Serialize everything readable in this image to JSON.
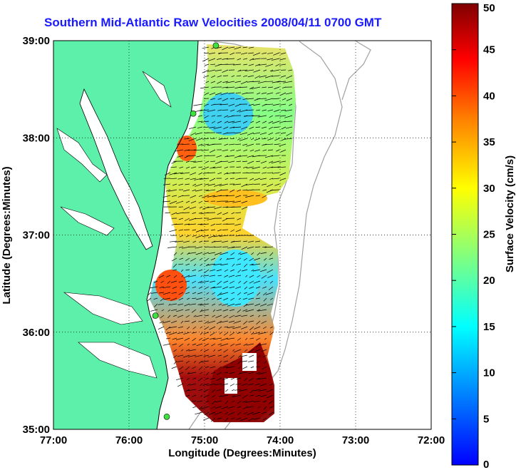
{
  "title": "Southern Mid-Atlantic Raw Velocities 2008/04/11 0700 GMT",
  "axes": {
    "xlabel": "Longitude (Degrees:Minutes)",
    "ylabel": "Latitude (Degrees:Minutes)",
    "x_ticks": [
      "77:00",
      "76:00",
      "75:00",
      "74:00",
      "73:00",
      "72:00"
    ],
    "y_ticks": [
      "39:00",
      "38:00",
      "37:00",
      "36:00",
      "35:00"
    ],
    "x_range_deg_west": [
      77,
      72
    ],
    "y_range_deg_north": [
      35,
      39
    ],
    "grid": "dotted"
  },
  "colorbar": {
    "label": "Surface Velocity (cm/s)",
    "ticks": [
      "50",
      "45",
      "40",
      "35",
      "30",
      "25",
      "20",
      "15",
      "10",
      "5",
      "0"
    ],
    "range": [
      0,
      50
    ],
    "colors": [
      "#7f0000",
      "#ff0000",
      "#ff8000",
      "#ffff00",
      "#80ff80",
      "#00ffff",
      "#0080ff",
      "#0000ff"
    ]
  },
  "colors": {
    "land": "#5cf0aa",
    "title": "#1a1aff",
    "coastline": "#000000",
    "bathymetry": "#a0a0a0"
  },
  "stations": [
    {
      "lon": 74.85,
      "lat": 38.95
    },
    {
      "lon": 75.15,
      "lat": 38.25
    },
    {
      "lon": 75.65,
      "lat": 36.17
    },
    {
      "lon": 75.5,
      "lat": 35.13
    }
  ]
}
